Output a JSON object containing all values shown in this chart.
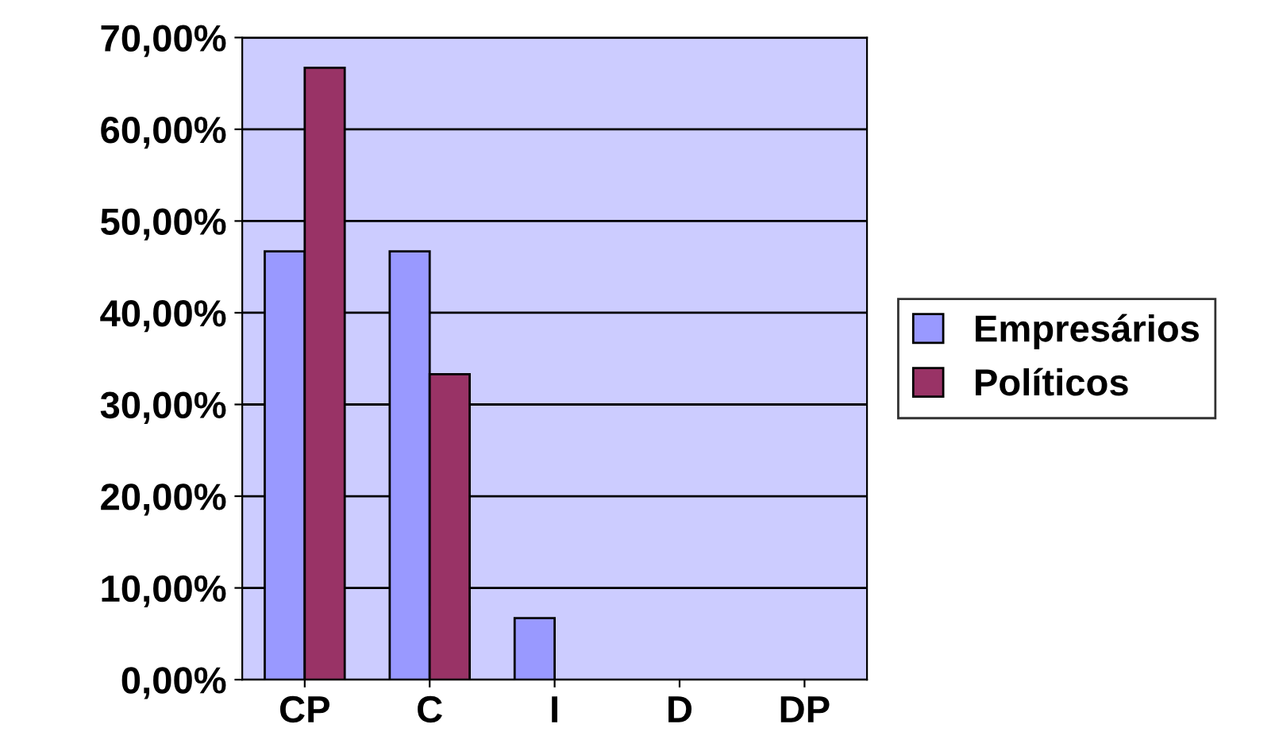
{
  "chart_data": {
    "type": "bar",
    "categories": [
      "CP",
      "C",
      "I",
      "D",
      "DP"
    ],
    "series": [
      {
        "name": "Empresários",
        "color": "#9999ff",
        "values": [
          46.7,
          46.7,
          6.7,
          0,
          0
        ]
      },
      {
        "name": "Políticos",
        "color": "#993366",
        "values": [
          66.7,
          33.3,
          0,
          0,
          0
        ]
      }
    ],
    "ylim": [
      0,
      70
    ],
    "yticks": [
      {
        "value": 0,
        "label": "0,00%"
      },
      {
        "value": 10,
        "label": "10,00%"
      },
      {
        "value": 20,
        "label": "20,00%"
      },
      {
        "value": 30,
        "label": "30,00%"
      },
      {
        "value": 40,
        "label": "40,00%"
      },
      {
        "value": 50,
        "label": "50,00%"
      },
      {
        "value": 60,
        "label": "60,00%"
      },
      {
        "value": 70,
        "label": "70,00%"
      }
    ],
    "grid": "y",
    "legend": "right"
  }
}
